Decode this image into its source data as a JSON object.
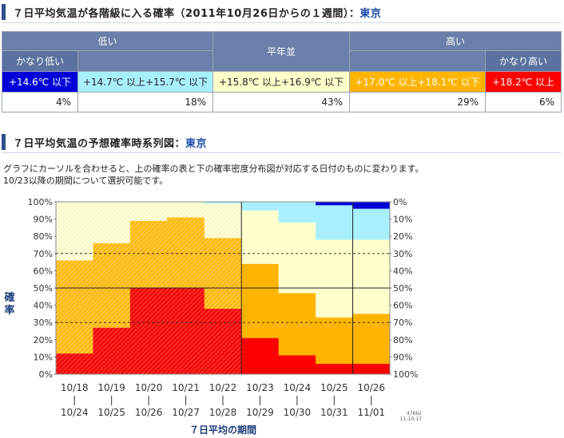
{
  "header1": {
    "title": "７日平均気温が各階級に入る確率（2011年10月26日からの１週間）：",
    "city": "東京"
  },
  "prob_table": {
    "groups": {
      "low": "低い",
      "normal": "平年並",
      "high": "高い"
    },
    "sub": {
      "very_low": "かなり低い",
      "very_high": "かなり高い"
    },
    "ranges": [
      "+14.6℃ 以下",
      "+14.7℃ 以上+15.7℃ 以下",
      "+15.8℃ 以上+16.9℃ 以下",
      "+17.0℃ 以上+18.1℃ 以下",
      "+18.2℃ 以上"
    ],
    "percents": [
      "4%",
      "18%",
      "43%",
      "29%",
      "6%"
    ]
  },
  "header2": {
    "title": "７日平均気温の予想確率時系列図：",
    "city": "東京"
  },
  "description": {
    "line1": "グラフにカーソルを合わせると、上の確率の表と下の確率密度分布図が対応する日付のものに変わります。",
    "line2": "10/23以降の期間について選択可能です。"
  },
  "colors": {
    "very_low": "#0000d8",
    "low": "#a8f0ff",
    "normal": "#ffffcc",
    "high": "#ffb400",
    "very_high": "#ff0000",
    "high_hatched": "#ffd25a",
    "very_high_hatched": "#e83a3a"
  },
  "chart_data": {
    "type": "area",
    "ylabel": "確率",
    "xlabel": "７日平均の期間",
    "yticks_left": [
      "100%",
      "90%",
      "80%",
      "70%",
      "60%",
      "50%",
      "40%",
      "30%",
      "20%",
      "10%",
      "0%"
    ],
    "yticks_right": [
      "0%",
      "10%",
      "20%",
      "30%",
      "40%",
      "50%",
      "60%",
      "70%",
      "80%",
      "90%",
      "100%"
    ],
    "ylim": [
      0,
      100
    ],
    "dashed_lines": [
      30,
      70
    ],
    "solid_line": 50,
    "x_start": [
      "10/18",
      "10/19",
      "10/20",
      "10/21",
      "10/22",
      "10/23",
      "10/24",
      "10/25",
      "10/26"
    ],
    "x_end": [
      "10/24",
      "10/25",
      "10/26",
      "10/27",
      "10/28",
      "10/29",
      "10/30",
      "10/31",
      "11/01"
    ],
    "selected_index": 8,
    "hatched_indices": [
      0,
      1,
      2,
      3,
      4
    ],
    "series": [
      {
        "name": "かなり高い",
        "values": [
          12,
          27,
          50,
          50,
          38,
          21,
          11,
          6,
          6
        ]
      },
      {
        "name": "高い",
        "values": [
          54,
          49,
          39,
          41,
          41,
          43,
          36,
          27,
          29
        ]
      },
      {
        "name": "平年並",
        "values": [
          34,
          24,
          11,
          9,
          20,
          31,
          41,
          45,
          43
        ]
      },
      {
        "name": "低い",
        "values": [
          0,
          0,
          0,
          0,
          1,
          5,
          12,
          20,
          18
        ]
      },
      {
        "name": "かなり低い",
        "values": [
          0,
          0,
          0,
          0,
          0,
          0,
          0,
          2,
          4
        ]
      }
    ],
    "stamp": [
      "47662",
      "11-10-17"
    ]
  }
}
